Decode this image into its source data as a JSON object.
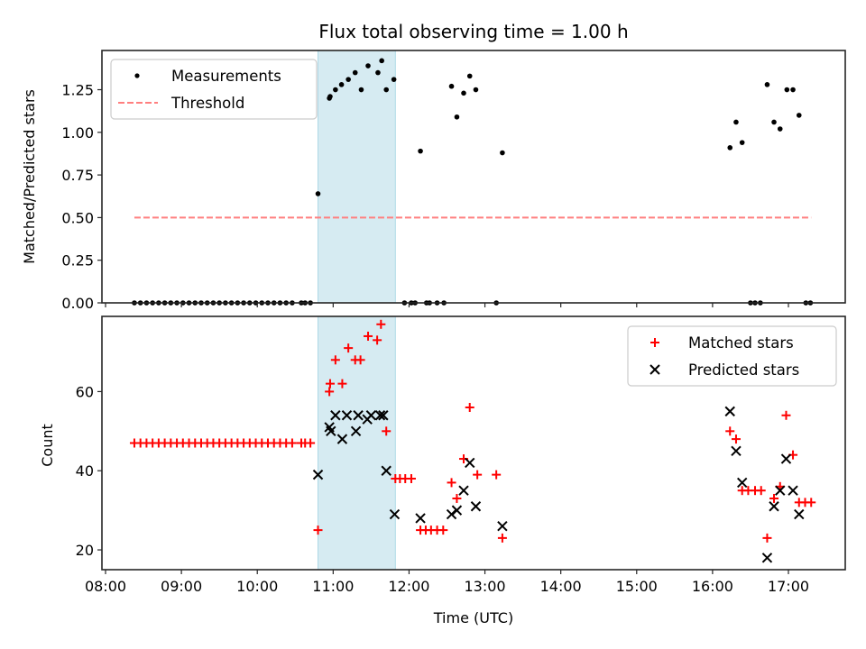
{
  "chart_data": [
    {
      "type": "scatter",
      "panel": "top",
      "title": "Flux total observing time = 1.00 h",
      "xlabel": "",
      "ylabel": "Matched/Predicted stars",
      "ylim": [
        0,
        1.48
      ],
      "yticks": [
        0.0,
        0.25,
        0.5,
        0.75,
        1.0,
        1.25
      ],
      "ytick_labels": [
        "0.00",
        "0.25",
        "0.50",
        "0.75",
        "1.00",
        "1.25"
      ],
      "xlim_hours": [
        7.95,
        17.8
      ],
      "legend": {
        "placement": "upper-left",
        "entries": [
          "Measurements",
          "Threshold"
        ]
      },
      "highlight_span_hours": [
        10.8,
        11.82
      ],
      "threshold": {
        "name": "Threshold",
        "value": 0.5,
        "x_hours": [
          8.38,
          17.3
        ],
        "color": "#ff7f7f",
        "style": "dashed"
      },
      "series": [
        {
          "name": "Measurements",
          "marker": "dot",
          "color": "#000000",
          "points": [
            [
              8.38,
              0
            ],
            [
              8.46,
              0
            ],
            [
              8.54,
              0
            ],
            [
              8.62,
              0
            ],
            [
              8.7,
              0
            ],
            [
              8.78,
              0
            ],
            [
              8.86,
              0
            ],
            [
              8.94,
              0
            ],
            [
              9.02,
              0
            ],
            [
              9.1,
              0
            ],
            [
              9.18,
              0
            ],
            [
              9.26,
              0
            ],
            [
              9.34,
              0
            ],
            [
              9.42,
              0
            ],
            [
              9.5,
              0
            ],
            [
              9.58,
              0
            ],
            [
              9.66,
              0
            ],
            [
              9.74,
              0
            ],
            [
              9.82,
              0
            ],
            [
              9.9,
              0
            ],
            [
              9.98,
              0
            ],
            [
              10.06,
              0
            ],
            [
              10.14,
              0
            ],
            [
              10.22,
              0
            ],
            [
              10.3,
              0
            ],
            [
              10.38,
              0
            ],
            [
              10.46,
              0
            ],
            [
              10.58,
              0
            ],
            [
              10.63,
              0
            ],
            [
              10.7,
              0
            ],
            [
              10.8,
              0.64
            ],
            [
              10.95,
              1.2
            ],
            [
              10.96,
              1.21
            ],
            [
              11.03,
              1.25
            ],
            [
              11.11,
              1.28
            ],
            [
              11.2,
              1.31
            ],
            [
              11.29,
              1.35
            ],
            [
              11.37,
              1.25
            ],
            [
              11.46,
              1.39
            ],
            [
              11.59,
              1.35
            ],
            [
              11.64,
              1.42
            ],
            [
              11.7,
              1.25
            ],
            [
              11.8,
              1.31
            ],
            [
              11.94,
              0
            ],
            [
              12.03,
              0
            ],
            [
              12.08,
              0
            ],
            [
              12.15,
              0.89
            ],
            [
              12.23,
              0
            ],
            [
              12.27,
              0
            ],
            [
              12.37,
              0
            ],
            [
              12.46,
              0
            ],
            [
              12.56,
              1.27
            ],
            [
              12.63,
              1.09
            ],
            [
              12.72,
              1.23
            ],
            [
              12.8,
              1.33
            ],
            [
              12.88,
              1.25
            ],
            [
              13.15,
              0
            ],
            [
              13.23,
              0.88
            ],
            [
              16.23,
              0.91
            ],
            [
              16.31,
              1.06
            ],
            [
              16.39,
              0.94
            ],
            [
              16.5,
              0
            ],
            [
              16.56,
              0
            ],
            [
              16.63,
              0
            ],
            [
              16.72,
              1.28
            ],
            [
              16.81,
              1.06
            ],
            [
              16.89,
              1.02
            ],
            [
              16.98,
              1.25
            ],
            [
              17.06,
              1.25
            ],
            [
              17.14,
              1.1
            ],
            [
              17.23,
              0
            ],
            [
              17.29,
              0
            ]
          ]
        }
      ]
    },
    {
      "type": "scatter",
      "panel": "bottom",
      "title": "",
      "xlabel": "Time (UTC)",
      "ylabel": "Count",
      "ylim": [
        15,
        79
      ],
      "yticks": [
        20,
        40,
        60
      ],
      "ytick_labels": [
        "20",
        "40",
        "60"
      ],
      "xlim_hours": [
        7.95,
        17.8
      ],
      "xticks_hours": [
        8,
        9,
        10,
        11,
        12,
        13,
        14,
        15,
        16,
        17
      ],
      "xtick_labels": [
        "08:00",
        "09:00",
        "10:00",
        "11:00",
        "12:00",
        "13:00",
        "14:00",
        "15:00",
        "16:00",
        "17:00"
      ],
      "legend": {
        "placement": "upper-right",
        "entries": [
          "Matched stars",
          "Predicted stars"
        ]
      },
      "highlight_span_hours": [
        10.8,
        11.82
      ],
      "series": [
        {
          "name": "Matched stars",
          "marker": "plus",
          "color": "#ff0000",
          "points": [
            [
              8.38,
              47
            ],
            [
              8.46,
              47
            ],
            [
              8.54,
              47
            ],
            [
              8.62,
              47
            ],
            [
              8.7,
              47
            ],
            [
              8.78,
              47
            ],
            [
              8.86,
              47
            ],
            [
              8.94,
              47
            ],
            [
              9.02,
              47
            ],
            [
              9.1,
              47
            ],
            [
              9.18,
              47
            ],
            [
              9.26,
              47
            ],
            [
              9.34,
              47
            ],
            [
              9.42,
              47
            ],
            [
              9.5,
              47
            ],
            [
              9.58,
              47
            ],
            [
              9.66,
              47
            ],
            [
              9.74,
              47
            ],
            [
              9.82,
              47
            ],
            [
              9.9,
              47
            ],
            [
              9.98,
              47
            ],
            [
              10.06,
              47
            ],
            [
              10.14,
              47
            ],
            [
              10.22,
              47
            ],
            [
              10.3,
              47
            ],
            [
              10.38,
              47
            ],
            [
              10.46,
              47
            ],
            [
              10.58,
              47
            ],
            [
              10.63,
              47
            ],
            [
              10.7,
              47
            ],
            [
              10.8,
              25
            ],
            [
              10.95,
              60
            ],
            [
              10.96,
              62
            ],
            [
              11.03,
              68
            ],
            [
              11.12,
              62
            ],
            [
              11.2,
              71
            ],
            [
              11.29,
              68
            ],
            [
              11.36,
              68
            ],
            [
              11.46,
              74
            ],
            [
              11.58,
              73
            ],
            [
              11.63,
              77
            ],
            [
              11.7,
              50
            ],
            [
              11.82,
              38
            ],
            [
              11.88,
              38
            ],
            [
              11.95,
              38
            ],
            [
              12.03,
              38
            ],
            [
              12.15,
              25
            ],
            [
              12.22,
              25
            ],
            [
              12.29,
              25
            ],
            [
              12.37,
              25
            ],
            [
              12.45,
              25
            ],
            [
              12.56,
              37
            ],
            [
              12.63,
              33
            ],
            [
              12.72,
              43
            ],
            [
              12.8,
              56
            ],
            [
              12.9,
              39
            ],
            [
              13.15,
              39
            ],
            [
              13.23,
              23
            ],
            [
              16.23,
              50
            ],
            [
              16.31,
              48
            ],
            [
              16.39,
              35
            ],
            [
              16.47,
              35
            ],
            [
              16.56,
              35
            ],
            [
              16.64,
              35
            ],
            [
              16.72,
              23
            ],
            [
              16.81,
              33
            ],
            [
              16.89,
              36
            ],
            [
              16.97,
              54
            ],
            [
              17.06,
              44
            ],
            [
              17.14,
              32
            ],
            [
              17.22,
              32
            ],
            [
              17.3,
              32
            ]
          ]
        },
        {
          "name": "Predicted stars",
          "marker": "x",
          "color": "#000000",
          "points": [
            [
              10.8,
              39
            ],
            [
              10.95,
              51
            ],
            [
              10.97,
              50
            ],
            [
              11.03,
              54
            ],
            [
              11.12,
              48
            ],
            [
              11.18,
              54
            ],
            [
              11.3,
              50
            ],
            [
              11.33,
              54
            ],
            [
              11.45,
              53
            ],
            [
              11.5,
              54
            ],
            [
              11.62,
              54
            ],
            [
              11.66,
              54
            ],
            [
              11.7,
              40
            ],
            [
              11.81,
              29
            ],
            [
              12.15,
              28
            ],
            [
              12.56,
              29
            ],
            [
              12.63,
              30
            ],
            [
              12.72,
              35
            ],
            [
              12.8,
              42
            ],
            [
              12.88,
              31
            ],
            [
              13.23,
              26
            ],
            [
              16.23,
              55
            ],
            [
              16.31,
              45
            ],
            [
              16.39,
              37
            ],
            [
              16.72,
              18
            ],
            [
              16.81,
              31
            ],
            [
              16.89,
              35
            ],
            [
              16.97,
              43
            ],
            [
              17.06,
              35
            ],
            [
              17.14,
              29
            ]
          ]
        }
      ]
    }
  ]
}
